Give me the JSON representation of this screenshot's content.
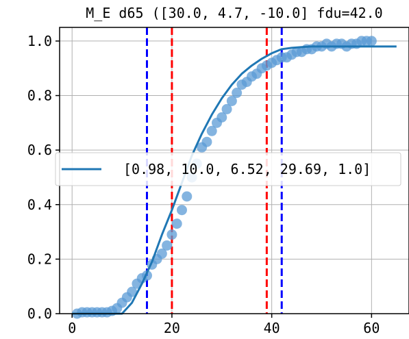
{
  "chart_data": {
    "type": "scatter",
    "title": "M_E d65 ([30.0, 4.7, -10.0] fdu=42.0",
    "xlabel": "",
    "ylabel": "",
    "xlim": [
      -2.5,
      67.5
    ],
    "ylim": [
      0.0,
      1.05
    ],
    "x_ticks": [
      0,
      20,
      40,
      60
    ],
    "y_ticks": [
      0.0,
      0.2,
      0.4,
      0.6,
      0.8,
      1.0
    ],
    "x_tick_labels": [
      "0",
      "20",
      "40",
      "60"
    ],
    "y_tick_labels": [
      "0.0",
      "0.2",
      "0.4",
      "0.6",
      "0.8",
      "1.0"
    ],
    "grid": true,
    "legend": {
      "placement": "center",
      "entries": [
        "[0.98, 10.0, 6.52, 29.69, 1.0]"
      ]
    },
    "series": [
      {
        "kind": "scatter",
        "color": "#5b9bd5",
        "x": [
          1,
          2,
          3,
          4,
          5,
          6,
          7,
          8,
          9,
          10,
          11,
          12,
          13,
          14,
          15,
          16,
          17,
          18,
          19,
          20,
          21,
          22,
          23,
          24,
          25,
          26,
          27,
          28,
          29,
          30,
          31,
          32,
          33,
          34,
          35,
          36,
          37,
          38,
          39,
          40,
          41,
          42,
          43,
          44,
          45,
          46,
          47,
          48,
          49,
          50,
          51,
          52,
          53,
          54,
          55,
          56,
          57,
          58,
          59,
          60
        ],
        "y": [
          0.0,
          0.005,
          0.005,
          0.005,
          0.005,
          0.005,
          0.005,
          0.01,
          0.02,
          0.04,
          0.06,
          0.08,
          0.11,
          0.13,
          0.14,
          0.18,
          0.2,
          0.22,
          0.25,
          0.29,
          0.33,
          0.38,
          0.43,
          0.5,
          0.55,
          0.61,
          0.63,
          0.67,
          0.7,
          0.72,
          0.75,
          0.78,
          0.81,
          0.84,
          0.85,
          0.87,
          0.88,
          0.9,
          0.91,
          0.92,
          0.93,
          0.94,
          0.94,
          0.95,
          0.96,
          0.96,
          0.97,
          0.97,
          0.98,
          0.98,
          0.99,
          0.98,
          0.99,
          0.99,
          0.98,
          0.99,
          0.99,
          1.0,
          1.0,
          1.0
        ]
      },
      {
        "kind": "line",
        "name": "[0.98, 10.0, 6.52, 29.69, 1.0]",
        "color": "#1f77b4",
        "x": [
          0,
          10,
          12,
          14,
          16,
          18,
          20,
          22,
          24,
          26,
          28,
          30,
          32,
          34,
          36,
          38,
          40,
          42,
          44,
          46,
          48,
          50,
          55,
          60,
          65
        ],
        "y": [
          0.0,
          0.0,
          0.04,
          0.11,
          0.19,
          0.29,
          0.38,
          0.48,
          0.58,
          0.66,
          0.73,
          0.79,
          0.84,
          0.88,
          0.91,
          0.935,
          0.955,
          0.97,
          0.975,
          0.978,
          0.98,
          0.98,
          0.98,
          0.98,
          0.98
        ]
      }
    ],
    "vlines": [
      {
        "x": 15,
        "color": "#0000ff",
        "style": "dashed"
      },
      {
        "x": 20,
        "color": "#ff0000",
        "style": "dashed"
      },
      {
        "x": 39,
        "color": "#ff0000",
        "style": "dashed"
      },
      {
        "x": 42,
        "color": "#0000ff",
        "style": "dashed"
      }
    ]
  }
}
